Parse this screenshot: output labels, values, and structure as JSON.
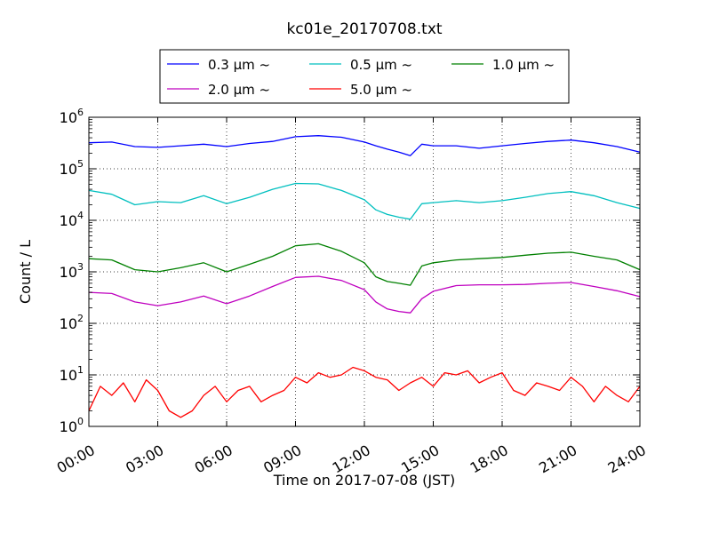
{
  "chart_data": {
    "type": "line",
    "title": "kc01e_20170708.txt",
    "xlabel": "Time on 2017-07-08 (JST)",
    "ylabel": "Count / L",
    "y_scale": "log",
    "x_range_hours": [
      0,
      24
    ],
    "ylim_exponents": [
      0,
      6
    ],
    "grid": true,
    "legend_position": "top-center",
    "x_tick_labels": [
      "00:00",
      "03:00",
      "06:00",
      "09:00",
      "12:00",
      "15:00",
      "18:00",
      "21:00",
      "24:00"
    ],
    "y_tick_exponents": [
      "0",
      "1",
      "2",
      "3",
      "4",
      "5",
      "6"
    ],
    "y_tick_base": "10",
    "series": [
      {
        "name": "0.3 μm ~",
        "color": "#0000ff",
        "x": [
          0,
          1,
          2,
          3,
          4,
          5,
          6,
          7,
          8,
          9,
          10,
          11,
          12,
          12.5,
          13,
          13.5,
          14,
          14.5,
          15,
          16,
          17,
          18,
          19,
          20,
          21,
          22,
          23,
          24
        ],
        "y": [
          320000,
          330000,
          270000,
          260000,
          280000,
          300000,
          270000,
          310000,
          340000,
          420000,
          440000,
          410000,
          330000,
          280000,
          240000,
          210000,
          180000,
          300000,
          280000,
          280000,
          250000,
          280000,
          310000,
          340000,
          360000,
          320000,
          270000,
          210000
        ]
      },
      {
        "name": "0.5 μm ~",
        "color": "#00bfbf",
        "x": [
          0,
          1,
          2,
          3,
          4,
          5,
          6,
          7,
          8,
          9,
          10,
          11,
          12,
          12.5,
          13,
          13.5,
          14,
          14.5,
          15,
          16,
          17,
          18,
          19,
          20,
          21,
          22,
          23,
          24
        ],
        "y": [
          38000,
          32000,
          20000,
          23000,
          22000,
          30000,
          21000,
          28000,
          40000,
          52000,
          51000,
          38000,
          25000,
          16000,
          13000,
          11500,
          10500,
          21000,
          22000,
          24000,
          22000,
          24000,
          28000,
          33000,
          36000,
          30000,
          22000,
          17000
        ]
      },
      {
        "name": "1.0 μm ~",
        "color": "#008000",
        "x": [
          0,
          1,
          2,
          3,
          4,
          5,
          6,
          7,
          8,
          9,
          10,
          11,
          12,
          12.5,
          13,
          13.5,
          14,
          14.5,
          15,
          16,
          17,
          18,
          19,
          20,
          21,
          22,
          23,
          24
        ],
        "y": [
          1800,
          1700,
          1100,
          1000,
          1200,
          1500,
          1000,
          1400,
          2000,
          3200,
          3500,
          2500,
          1500,
          800,
          650,
          600,
          550,
          1300,
          1500,
          1700,
          1800,
          1900,
          2100,
          2300,
          2400,
          2000,
          1700,
          1100
        ]
      },
      {
        "name": "2.0 μm ~",
        "color": "#bf00bf",
        "x": [
          0,
          1,
          2,
          3,
          4,
          5,
          6,
          7,
          8,
          9,
          10,
          11,
          12,
          12.5,
          13,
          13.5,
          14,
          14.5,
          15,
          16,
          17,
          18,
          19,
          20,
          21,
          22,
          23,
          24
        ],
        "y": [
          400,
          380,
          260,
          220,
          260,
          340,
          240,
          340,
          520,
          780,
          820,
          680,
          450,
          260,
          190,
          170,
          160,
          300,
          420,
          540,
          560,
          560,
          570,
          600,
          620,
          520,
          430,
          330
        ]
      },
      {
        "name": "5.0 μm ~",
        "color": "#ff0000",
        "x": [
          0,
          0.5,
          1,
          1.5,
          2,
          2.5,
          3,
          3.5,
          4,
          4.5,
          5,
          5.5,
          6,
          6.5,
          7,
          7.5,
          8,
          8.5,
          9,
          9.5,
          10,
          10.5,
          11,
          11.5,
          12,
          12.5,
          13,
          13.5,
          14,
          14.5,
          15,
          15.5,
          16,
          16.5,
          17,
          17.5,
          18,
          18.5,
          19,
          19.5,
          20,
          20.5,
          21,
          21.5,
          22,
          22.5,
          23,
          23.5,
          24
        ],
        "y": [
          2,
          6,
          4,
          7,
          3,
          8,
          5,
          2,
          1.5,
          2,
          4,
          6,
          3,
          5,
          6,
          3,
          4,
          5,
          9,
          7,
          11,
          9,
          10,
          14,
          12,
          9,
          8,
          5,
          7,
          9,
          6,
          11,
          10,
          12,
          7,
          9,
          11,
          5,
          4,
          7,
          6,
          5,
          9,
          6,
          3,
          6,
          4,
          3,
          6
        ]
      }
    ]
  }
}
